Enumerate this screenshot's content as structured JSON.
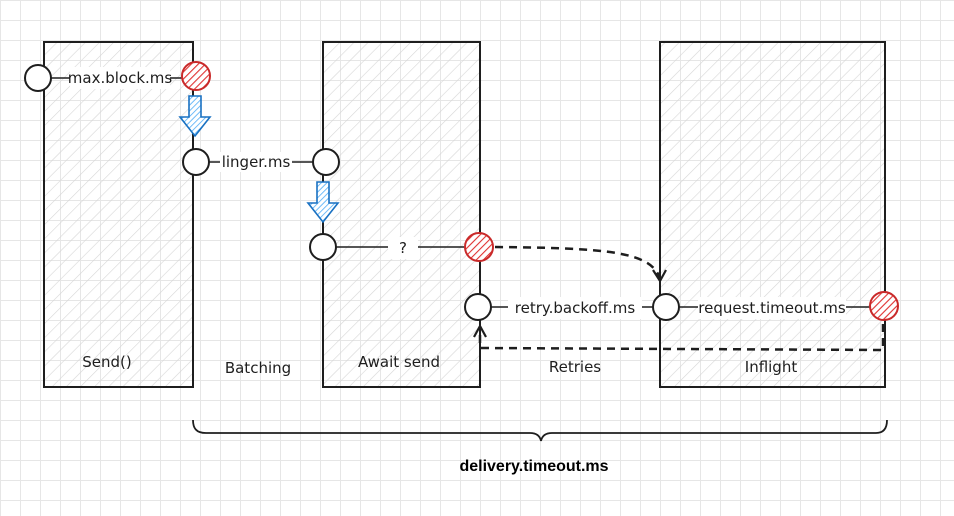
{
  "colors": {
    "stroke": "#1e1e1e",
    "red_node": "#e03131",
    "blue_arrow": "#1971c2",
    "hatch": "#d6d6d6"
  },
  "boxes": {
    "send": "Send()",
    "await_send": "Await send",
    "inflight": "Inflight"
  },
  "phases": {
    "batching": "Batching",
    "retries": "Retries"
  },
  "edges": {
    "max_block": "max.block.ms",
    "linger": "linger.ms",
    "unknown": "?",
    "retry_backoff": "retry.backoff.ms",
    "request_timeout": "request.timeout.ms"
  },
  "brace_label": "delivery.timeout.ms"
}
